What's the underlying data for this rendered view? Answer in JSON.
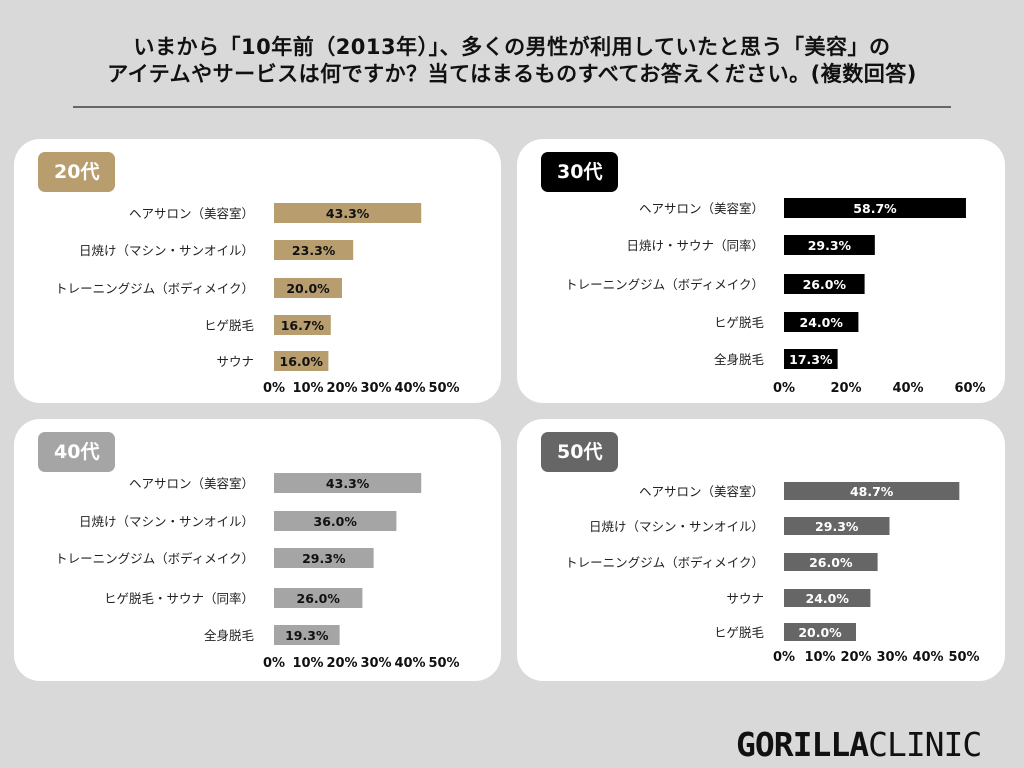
{
  "title": {
    "line1": "いまから「10年前（2013年）」、多くの男性が利用していたと思う「美容」の",
    "line2": "アイテムやサービスは何ですか？当てはまるものすべてお答えください。(複数回答)"
  },
  "logo": {
    "bold": "GORILLA",
    "light": "CLINIC"
  },
  "chart_data": [
    {
      "type": "bar",
      "orientation": "horizontal",
      "title": "20代",
      "color": "#b89d6e",
      "categories": [
        "ヘアサロン（美容室）",
        "日焼け（マシン・サンオイル）",
        "トレーニングジム（ボディメイク）",
        "ヒゲ脱毛",
        "サウナ"
      ],
      "values": [
        43.3,
        23.3,
        20.0,
        16.7,
        16.0
      ],
      "value_labels": [
        "43.3%",
        "23.3%",
        "20.0%",
        "16.7%",
        "16.0%"
      ],
      "label_color": "#111111",
      "xlim": [
        0,
        50
      ],
      "xticks": [
        "0%",
        "10%",
        "20%",
        "30%",
        "40%",
        "50%"
      ]
    },
    {
      "type": "bar",
      "orientation": "horizontal",
      "title": "30代",
      "color": "#000000",
      "categories": [
        "ヘアサロン（美容室）",
        "日焼け・サウナ（同率）",
        "トレーニングジム（ボディメイク）",
        "ヒゲ脱毛",
        "全身脱毛"
      ],
      "values": [
        58.7,
        29.3,
        26.0,
        24.0,
        17.3
      ],
      "value_labels": [
        "58.7%",
        "29.3%",
        "26.0%",
        "24.0%",
        "17.3%"
      ],
      "label_color": "#ffffff",
      "xlim": [
        0,
        60
      ],
      "xticks": [
        "0%",
        "20%",
        "40%",
        "60%"
      ]
    },
    {
      "type": "bar",
      "orientation": "horizontal",
      "title": "40代",
      "color": "#a5a5a5",
      "categories": [
        "ヘアサロン（美容室）",
        "日焼け（マシン・サンオイル）",
        "トレーニングジム（ボディメイク）",
        "ヒゲ脱毛・サウナ（同率）",
        "全身脱毛"
      ],
      "values": [
        43.3,
        36.0,
        29.3,
        26.0,
        19.3
      ],
      "value_labels": [
        "43.3%",
        "36.0%",
        "29.3%",
        "26.0%",
        "19.3%"
      ],
      "label_color": "#111111",
      "xlim": [
        0,
        50
      ],
      "xticks": [
        "0%",
        "10%",
        "20%",
        "30%",
        "40%",
        "50%"
      ]
    },
    {
      "type": "bar",
      "orientation": "horizontal",
      "title": "50代",
      "color": "#666666",
      "categories": [
        "ヘアサロン（美容室）",
        "日焼け（マシン・サンオイル）",
        "トレーニングジム（ボディメイク）",
        "サウナ",
        "ヒゲ脱毛"
      ],
      "values": [
        48.7,
        29.3,
        26.0,
        24.0,
        20.0
      ],
      "value_labels": [
        "48.7%",
        "29.3%",
        "26.0%",
        "24.0%",
        "20.0%"
      ],
      "label_color": "#ffffff",
      "xlim": [
        0,
        50
      ],
      "xticks": [
        "0%",
        "10%",
        "20%",
        "30%",
        "40%",
        "50%"
      ]
    }
  ]
}
